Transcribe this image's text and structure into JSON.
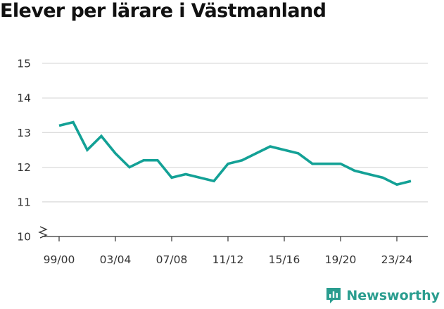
{
  "title": "Elever per lärare i Västmanland",
  "brand": {
    "name": "Newsworthy",
    "icon": "newsworthy-logo-icon",
    "color": "#2a9d8f"
  },
  "colors": {
    "line": "#13a196",
    "grid": "#dcdcdc",
    "axis": "#333333"
  },
  "chart_data": {
    "type": "line",
    "title": "Elever per lärare i Västmanland",
    "xlabel": "",
    "ylabel": "",
    "ylim": [
      10,
      15
    ],
    "yticks": [
      10,
      11,
      12,
      13,
      14,
      15
    ],
    "y_axis_break": true,
    "grid": true,
    "legend": "none",
    "x": [
      "99/00",
      "00/01",
      "01/02",
      "02/03",
      "03/04",
      "04/05",
      "05/06",
      "06/07",
      "07/08",
      "08/09",
      "09/10",
      "10/11",
      "11/12",
      "12/13",
      "13/14",
      "14/15",
      "15/16",
      "16/17",
      "17/18",
      "18/19",
      "19/20",
      "20/21",
      "21/22",
      "22/23",
      "23/24",
      "24/25"
    ],
    "xtick_labels": [
      "99/00",
      "03/04",
      "07/08",
      "11/12",
      "15/16",
      "19/20",
      "23/24"
    ],
    "series": [
      {
        "values": [
          13.2,
          13.3,
          12.5,
          12.9,
          12.4,
          12.0,
          12.2,
          12.2,
          11.7,
          11.8,
          11.7,
          11.6,
          12.1,
          12.2,
          12.4,
          12.6,
          12.5,
          12.4,
          12.1,
          12.1,
          12.1,
          11.9,
          11.8,
          11.7,
          11.5,
          11.6
        ]
      }
    ]
  }
}
